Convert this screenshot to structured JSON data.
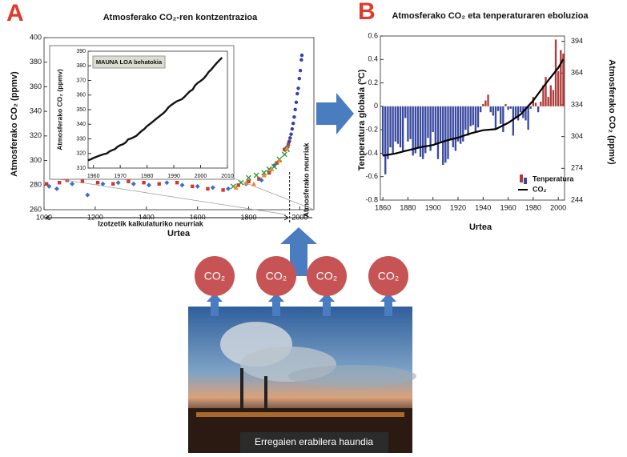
{
  "panels": {
    "a": "A",
    "b": "B"
  },
  "chart_data": [
    {
      "type": "scatter",
      "title": "Atmosferako CO₂-ren kontzentrazioa",
      "x_label": "Urtea",
      "y_label": "Atmosferako CO₂ (ppmv)",
      "xlim": [
        1000,
        2055
      ],
      "xticks": [
        1000,
        1200,
        1400,
        1600,
        1800,
        2000
      ],
      "ylim": [
        260,
        400
      ],
      "yticks": [
        260,
        280,
        300,
        320,
        340,
        360,
        380,
        400
      ],
      "annotations": [
        "Izotzetik kalkulaturiko neurriak",
        "Atmosferako neurriak"
      ],
      "series": [
        {
          "color": "#d9342b",
          "marker": "square",
          "x": [
            1010,
            1060,
            1090,
            1150,
            1210,
            1270,
            1330,
            1390,
            1450,
            1520,
            1580,
            1640,
            1700,
            1760,
            1800,
            1840,
            1880,
            1910,
            1940,
            1955
          ],
          "values": [
            281,
            282,
            284,
            283,
            282,
            281,
            283,
            282,
            281,
            282,
            279,
            277,
            276,
            280,
            283,
            285,
            290,
            298,
            309,
            313
          ]
        },
        {
          "color": "#3a6fd0",
          "marker": "diamond",
          "x": [
            1020,
            1050,
            1110,
            1170,
            1230,
            1290,
            1350,
            1410,
            1480,
            1540,
            1600,
            1660,
            1720,
            1790,
            1850,
            1900,
            1950
          ],
          "values": [
            279,
            277,
            281,
            272,
            281,
            282,
            281,
            280,
            282,
            280,
            279,
            278,
            277,
            281,
            284,
            296,
            311
          ]
        },
        {
          "color": "#2e9a3a",
          "marker": "cross",
          "x": [
            1740,
            1770,
            1800,
            1830,
            1860,
            1880,
            1900,
            1920,
            1940,
            1950
          ],
          "values": [
            279,
            282,
            286,
            288,
            290,
            293,
            295,
            301,
            305,
            309
          ]
        },
        {
          "color": "#f08a24",
          "marker": "triangle",
          "x": [
            1750,
            1790,
            1820,
            1860,
            1890,
            1920,
            1950,
            1960
          ],
          "values": [
            278,
            282,
            281,
            288,
            293,
            300,
            310,
            317
          ]
        },
        {
          "color": "#3340b0",
          "marker": "circle",
          "x": [
            1958,
            1962,
            1966,
            1970,
            1974,
            1978,
            1982,
            1986,
            1990,
            1994,
            1998,
            2002,
            2006,
            2008
          ],
          "values": [
            315.3,
            318.4,
            321.4,
            325.7,
            330.2,
            335.4,
            341.5,
            347.4,
            354.4,
            358.8,
            366.7,
            373.2,
            381.9,
            385.6
          ]
        }
      ]
    },
    {
      "type": "line",
      "title": "MAUNA LOA behatokia",
      "y_label": "Atmosferako CO₂ (ppmv)",
      "xlim": [
        1958,
        2010
      ],
      "xticks": [
        1960,
        1970,
        1980,
        1990,
        2000,
        2010
      ],
      "ylim": [
        310,
        390
      ],
      "yticks": [
        310,
        320,
        330,
        340,
        350,
        360,
        370,
        380,
        390
      ],
      "series": [
        {
          "color": "#111111",
          "x": [
            1958,
            1959,
            1960,
            1961,
            1962,
            1963,
            1964,
            1965,
            1966,
            1967,
            1968,
            1969,
            1970,
            1971,
            1972,
            1973,
            1974,
            1975,
            1976,
            1977,
            1978,
            1979,
            1980,
            1981,
            1982,
            1983,
            1984,
            1985,
            1986,
            1987,
            1988,
            1989,
            1990,
            1991,
            1992,
            1993,
            1994,
            1995,
            1996,
            1997,
            1998,
            1999,
            2000,
            2001,
            2002,
            2003,
            2004,
            2005,
            2006,
            2007,
            2008
          ],
          "values": [
            315.3,
            316,
            316.9,
            317.6,
            318.4,
            319,
            319.6,
            320,
            321.4,
            322.2,
            323,
            324.6,
            325.7,
            326.3,
            327.5,
            329.7,
            330.2,
            331.1,
            332,
            333.8,
            335.4,
            336.8,
            338.7,
            340.1,
            341.5,
            343.1,
            344.6,
            346,
            347.4,
            349.2,
            351.6,
            353.1,
            354.4,
            355.6,
            356.4,
            357.1,
            358.8,
            360.8,
            362.6,
            363.7,
            366.7,
            368.4,
            369.6,
            371.1,
            373.2,
            375.8,
            377.5,
            379.8,
            381.9,
            383.8,
            385.6
          ]
        }
      ]
    },
    {
      "type": "bar",
      "title": "Atmosferako CO₂ eta tenperaturaren eboluzioa",
      "x_label": "Urtea",
      "y_label": "Tenperatura globala (ºC)",
      "y2_label": "Atmosferako CO₂ (ppmv)",
      "xlim": [
        1858,
        2005
      ],
      "xticks": [
        1860,
        1880,
        1900,
        1920,
        1940,
        1960,
        1980,
        2000
      ],
      "ylim": [
        -0.8,
        0.6
      ],
      "yticks": [
        -0.8,
        -0.6,
        -0.4,
        -0.2,
        0,
        0.2,
        0.4,
        0.6
      ],
      "y2lim": [
        244,
        399
      ],
      "y2ticks": [
        244,
        274,
        304,
        334,
        364,
        394
      ],
      "legend": "lower right",
      "series": [
        {
          "name": "Tenperatura",
          "color": "#b33a3a",
          "negative_color": "#3a4aa0",
          "x": [
            1860,
            1862,
            1864,
            1866,
            1868,
            1870,
            1872,
            1874,
            1876,
            1878,
            1880,
            1882,
            1884,
            1886,
            1888,
            1890,
            1892,
            1894,
            1896,
            1898,
            1900,
            1902,
            1904,
            1906,
            1908,
            1910,
            1912,
            1914,
            1916,
            1918,
            1920,
            1922,
            1924,
            1926,
            1928,
            1930,
            1932,
            1934,
            1936,
            1938,
            1940,
            1942,
            1944,
            1946,
            1948,
            1950,
            1952,
            1954,
            1956,
            1958,
            1960,
            1962,
            1964,
            1966,
            1968,
            1970,
            1972,
            1974,
            1976,
            1978,
            1980,
            1982,
            1984,
            1986,
            1988,
            1990,
            1992,
            1994,
            1996,
            1998,
            2000,
            2002,
            2004
          ],
          "values": [
            -0.42,
            -0.58,
            -0.45,
            -0.35,
            -0.4,
            -0.3,
            -0.32,
            -0.35,
            -0.38,
            -0.1,
            -0.3,
            -0.28,
            -0.42,
            -0.4,
            -0.35,
            -0.43,
            -0.45,
            -0.4,
            -0.27,
            -0.38,
            -0.22,
            -0.32,
            -0.45,
            -0.3,
            -0.5,
            -0.48,
            -0.45,
            -0.28,
            -0.35,
            -0.38,
            -0.3,
            -0.32,
            -0.3,
            -0.2,
            -0.25,
            -0.17,
            -0.16,
            -0.22,
            -0.18,
            -0.05,
            0.02,
            0.05,
            0.1,
            -0.05,
            -0.08,
            -0.2,
            -0.04,
            -0.15,
            -0.22,
            0.02,
            -0.03,
            -0.02,
            -0.25,
            -0.1,
            -0.12,
            -0.05,
            -0.1,
            -0.12,
            -0.2,
            -0.02,
            0.08,
            0.03,
            -0.05,
            0.04,
            0.18,
            0.25,
            0.08,
            0.18,
            0.14,
            0.57,
            0.3,
            0.48,
            0.45
          ]
        },
        {
          "name": "CO₂",
          "type": "line",
          "axis": "y2",
          "color": "#000000",
          "x": [
            1860,
            1870,
            1880,
            1890,
            1900,
            1910,
            1920,
            1930,
            1940,
            1950,
            1960,
            1970,
            1980,
            1990,
            2000,
            2004
          ],
          "values": [
            286,
            288,
            291,
            294,
            296,
            300,
            303,
            307,
            310,
            311,
            317,
            325,
            338,
            354,
            369,
            377
          ]
        }
      ]
    }
  ],
  "diagram": {
    "co2_labels": [
      "CO₂",
      "CO₂",
      "CO₂",
      "CO₂"
    ],
    "caption": "Erregaien erabilera haundia"
  }
}
